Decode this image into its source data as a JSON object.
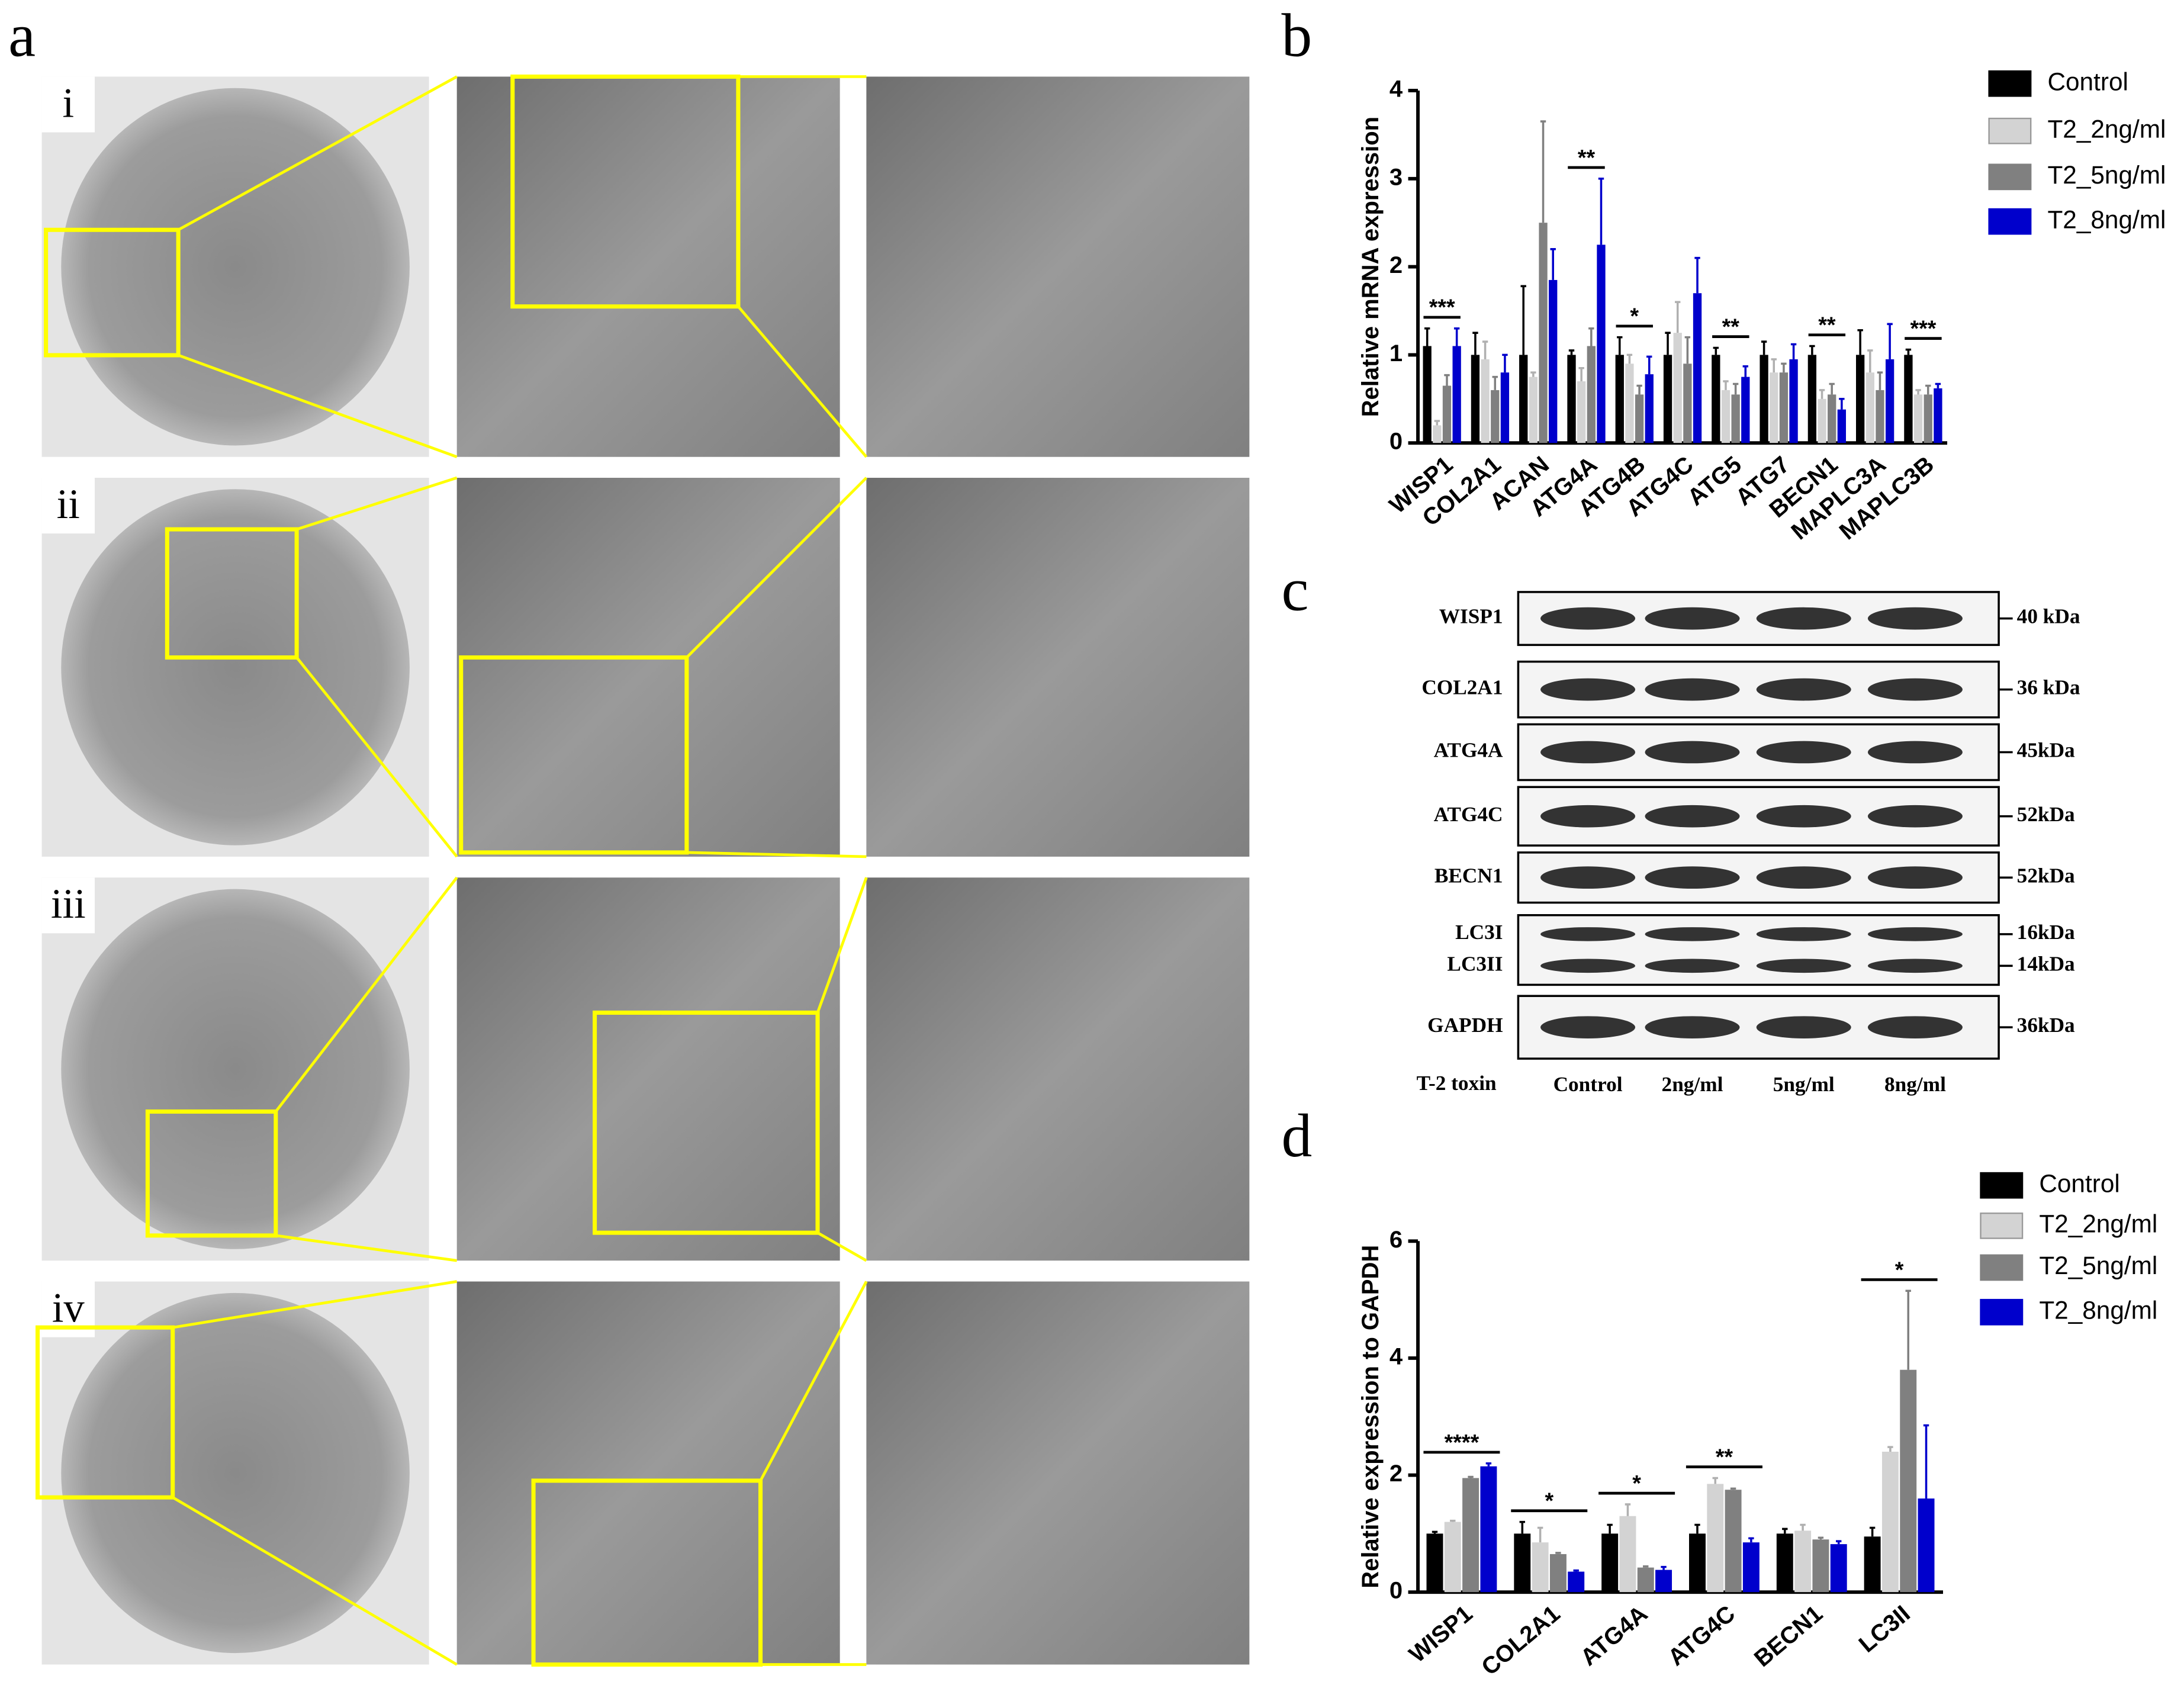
{
  "panel_a": {
    "label": "a",
    "rows": [
      "i",
      "ii",
      "iii",
      "iv"
    ]
  },
  "panel_c": {
    "label": "c",
    "treatment_label": "T-2 toxin",
    "lanes": [
      "Control",
      "2ng/ml",
      "5ng/ml",
      "8ng/ml"
    ],
    "blots": [
      {
        "proteins": [
          "WISP1"
        ],
        "sizes": [
          "40 kDa"
        ]
      },
      {
        "proteins": [
          "COL2A1"
        ],
        "sizes": [
          "36 kDa"
        ]
      },
      {
        "proteins": [
          "ATG4A"
        ],
        "sizes": [
          "45kDa"
        ]
      },
      {
        "proteins": [
          "ATG4C"
        ],
        "sizes": [
          "52kDa"
        ]
      },
      {
        "proteins": [
          "BECN1"
        ],
        "sizes": [
          "52kDa"
        ]
      },
      {
        "proteins": [
          "LC3I",
          "LC3II"
        ],
        "sizes": [
          "16kDa",
          "14kDa"
        ]
      },
      {
        "proteins": [
          "GAPDH"
        ],
        "sizes": [
          "36kDa"
        ]
      }
    ]
  },
  "chart_data": [
    {
      "type": "bar",
      "label": "b",
      "y_label": "Relative mRNA expression",
      "categories": [
        "WISP1",
        "COL2A1",
        "ACAN",
        "ATG4A",
        "ATG4B",
        "ATG4C",
        "ATG5",
        "ATG7",
        "BECN1",
        "MAPLC3A",
        "MAPLC3B"
      ],
      "series": [
        {
          "name": "Control",
          "color": "#000000",
          "values": [
            1.1,
            1.0,
            1.0,
            1.0,
            1.0,
            1.0,
            1.0,
            1.0,
            1.0,
            1.0,
            1.0
          ],
          "errors": [
            0.2,
            0.25,
            0.78,
            0.05,
            0.2,
            0.25,
            0.08,
            0.15,
            0.1,
            0.28,
            0.06
          ]
        },
        {
          "name": "T2_2ng/ml",
          "color": "#d3d3d3",
          "values": [
            0.2,
            0.95,
            0.75,
            0.7,
            0.9,
            1.25,
            0.6,
            0.8,
            0.5,
            0.8,
            0.55
          ],
          "errors": [
            0.05,
            0.2,
            0.05,
            0.15,
            0.1,
            0.35,
            0.1,
            0.15,
            0.1,
            0.25,
            0.05
          ]
        },
        {
          "name": "T2_5ng/ml",
          "color": "#808080",
          "values": [
            0.65,
            0.6,
            2.5,
            1.1,
            0.55,
            0.9,
            0.55,
            0.8,
            0.55,
            0.6,
            0.55
          ],
          "errors": [
            0.12,
            0.15,
            1.15,
            0.2,
            0.1,
            0.3,
            0.12,
            0.1,
            0.12,
            0.2,
            0.1
          ]
        },
        {
          "name": "T2_8ng/ml",
          "color": "#0000cc",
          "values": [
            1.1,
            0.8,
            1.85,
            2.25,
            0.78,
            1.7,
            0.75,
            0.95,
            0.38,
            0.95,
            0.62
          ],
          "errors": [
            0.2,
            0.2,
            0.35,
            0.75,
            0.2,
            0.4,
            0.12,
            0.17,
            0.12,
            0.4,
            0.05
          ]
        }
      ],
      "significance": [
        "***",
        null,
        null,
        "**",
        "*",
        null,
        "**",
        null,
        "**",
        null,
        "***"
      ],
      "ylim": [
        0,
        4
      ],
      "yticks": [
        0,
        1,
        2,
        3,
        4
      ]
    },
    {
      "type": "bar",
      "label": "d",
      "y_label": "Relative expression to GAPDH",
      "categories": [
        "WISP1",
        "COL2A1",
        "ATG4A",
        "ATG4C",
        "BECN1",
        "LC3II"
      ],
      "series": [
        {
          "name": "Control",
          "color": "#000000",
          "values": [
            1.0,
            1.0,
            1.0,
            1.0,
            1.0,
            0.95
          ],
          "errors": [
            0.03,
            0.2,
            0.15,
            0.15,
            0.08,
            0.15
          ]
        },
        {
          "name": "T2_2ng/ml",
          "color": "#d3d3d3",
          "values": [
            1.2,
            0.85,
            1.3,
            1.85,
            1.05,
            2.4
          ],
          "errors": [
            0.02,
            0.25,
            0.2,
            0.1,
            0.1,
            0.08
          ]
        },
        {
          "name": "T2_5ng/ml",
          "color": "#808080",
          "values": [
            1.95,
            0.65,
            0.42,
            1.75,
            0.9,
            3.8
          ],
          "errors": [
            0.02,
            0.02,
            0.02,
            0.02,
            0.03,
            1.35
          ]
        },
        {
          "name": "T2_8ng/ml",
          "color": "#0000cc",
          "values": [
            2.15,
            0.35,
            0.38,
            0.85,
            0.82,
            1.6
          ],
          "errors": [
            0.05,
            0.02,
            0.05,
            0.07,
            0.05,
            1.25
          ]
        }
      ],
      "significance": [
        "****",
        "*",
        "*",
        "**",
        null,
        "*"
      ],
      "ylim": [
        0,
        6
      ],
      "yticks": [
        0,
        2,
        4,
        6
      ]
    }
  ]
}
